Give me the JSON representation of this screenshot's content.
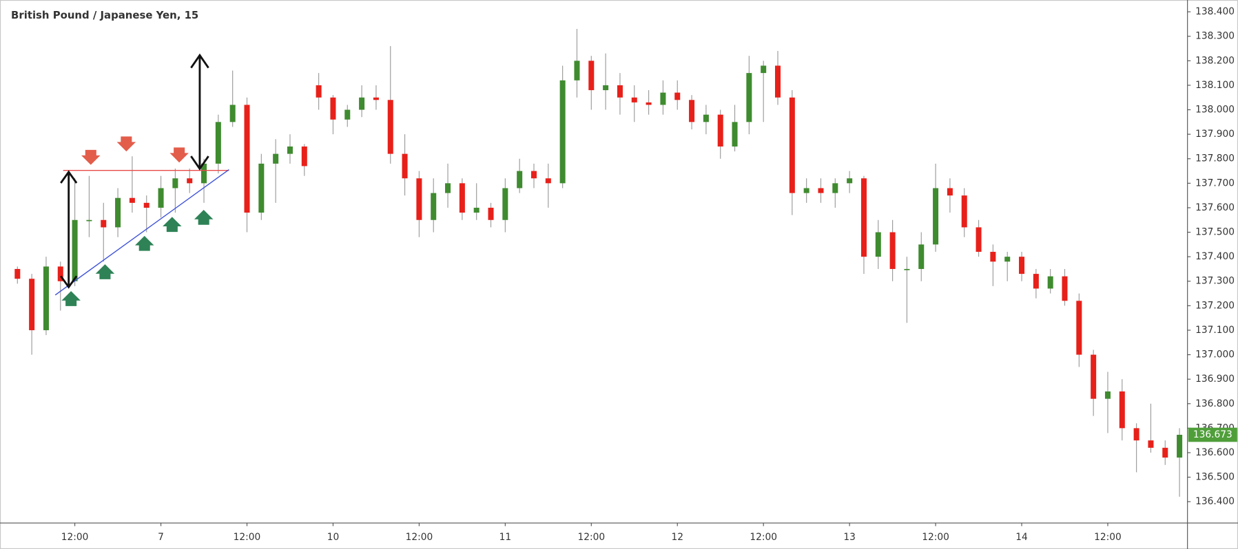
{
  "chart_data": {
    "type": "candlestick",
    "title": "British Pound / Japanese Yen, 15",
    "categories": [
      null,
      null,
      null,
      null,
      "12:00",
      null,
      null,
      null,
      null,
      null,
      "7",
      null,
      null,
      null,
      null,
      null,
      "12:00",
      null,
      null,
      null,
      null,
      null,
      "10",
      null,
      null,
      null,
      null,
      null,
      "12:00",
      null,
      null,
      null,
      null,
      null,
      "11",
      null,
      null,
      null,
      null,
      null,
      "12:00",
      null,
      null,
      null,
      null,
      null,
      "12",
      null,
      null,
      null,
      null,
      null,
      "12:00",
      null,
      null,
      null,
      null,
      null,
      "13",
      null,
      null,
      null,
      null,
      null,
      "12:00",
      null,
      null,
      null,
      null,
      null,
      "14",
      null,
      null,
      null,
      null,
      null,
      "12:00",
      null,
      null,
      null,
      null,
      null
    ],
    "open": [
      137.35,
      137.31,
      137.1,
      137.36,
      137.3,
      137.55,
      137.55,
      137.52,
      137.64,
      137.62,
      137.6,
      137.68,
      137.72,
      137.7,
      137.78,
      137.95,
      138.02,
      137.58,
      137.78,
      137.82,
      137.85,
      138.1,
      138.05,
      137.96,
      138.0,
      138.05,
      138.04,
      137.82,
      137.72,
      137.55,
      137.66,
      137.7,
      137.58,
      137.6,
      137.55,
      137.68,
      137.75,
      137.72,
      137.7,
      138.12,
      138.2,
      138.08,
      138.1,
      138.05,
      138.03,
      138.02,
      138.07,
      138.04,
      137.95,
      137.98,
      137.85,
      137.95,
      138.15,
      138.18,
      138.05,
      137.66,
      137.68,
      137.66,
      137.7,
      137.72,
      137.4,
      137.5,
      137.35,
      137.35,
      137.45,
      137.68,
      137.65,
      137.52,
      137.42,
      137.38,
      137.4,
      137.33,
      137.27,
      137.32,
      137.22,
      137.0,
      136.82,
      136.85,
      136.7,
      136.65,
      136.62,
      136.58
    ],
    "high": [
      137.36,
      137.33,
      137.4,
      137.38,
      137.72,
      137.73,
      137.62,
      137.68,
      137.81,
      137.65,
      137.73,
      137.76,
      137.76,
      137.8,
      137.98,
      138.16,
      138.05,
      137.82,
      137.88,
      137.9,
      137.86,
      138.15,
      138.06,
      138.02,
      138.1,
      138.1,
      138.26,
      137.9,
      137.75,
      137.72,
      137.78,
      137.72,
      137.7,
      137.62,
      137.72,
      137.8,
      137.78,
      137.78,
      138.18,
      138.33,
      138.22,
      138.23,
      138.15,
      138.1,
      138.08,
      138.12,
      138.12,
      138.06,
      138.02,
      138.0,
      138.02,
      138.22,
      138.2,
      138.24,
      138.08,
      137.72,
      137.72,
      137.72,
      137.75,
      137.73,
      137.55,
      137.55,
      137.4,
      137.5,
      137.78,
      137.72,
      137.68,
      137.55,
      137.45,
      137.42,
      137.42,
      137.35,
      137.35,
      137.35,
      137.25,
      137.02,
      136.93,
      136.9,
      136.72,
      136.8,
      136.65,
      136.7
    ],
    "low": [
      137.29,
      137.0,
      137.08,
      137.18,
      137.28,
      137.48,
      137.38,
      137.48,
      137.58,
      137.5,
      137.56,
      137.58,
      137.66,
      137.62,
      137.74,
      137.93,
      137.5,
      137.55,
      137.62,
      137.78,
      137.73,
      138.0,
      137.9,
      137.93,
      137.97,
      138.0,
      137.78,
      137.65,
      137.48,
      137.5,
      137.6,
      137.55,
      137.55,
      137.52,
      137.5,
      137.66,
      137.68,
      137.6,
      137.68,
      138.05,
      138.0,
      138.0,
      137.98,
      137.95,
      137.98,
      137.98,
      138.0,
      137.92,
      137.9,
      137.8,
      137.83,
      137.9,
      137.95,
      138.02,
      137.57,
      137.62,
      137.62,
      137.6,
      137.66,
      137.33,
      137.35,
      137.3,
      137.13,
      137.3,
      137.42,
      137.58,
      137.48,
      137.4,
      137.28,
      137.3,
      137.3,
      137.23,
      137.25,
      137.2,
      136.95,
      136.75,
      136.68,
      136.65,
      136.52,
      136.6,
      136.55,
      136.42
    ],
    "close": [
      137.31,
      137.1,
      137.36,
      137.3,
      137.55,
      137.55,
      137.52,
      137.64,
      137.62,
      137.6,
      137.68,
      137.72,
      137.7,
      137.78,
      137.95,
      138.02,
      137.58,
      137.78,
      137.82,
      137.85,
      137.77,
      138.05,
      137.96,
      138.0,
      138.05,
      138.04,
      137.82,
      137.72,
      137.55,
      137.66,
      137.7,
      137.58,
      137.6,
      137.55,
      137.68,
      137.75,
      137.72,
      137.7,
      138.12,
      138.2,
      138.08,
      138.1,
      138.05,
      138.03,
      138.02,
      138.07,
      138.04,
      137.95,
      137.98,
      137.85,
      137.95,
      138.15,
      138.18,
      138.05,
      137.66,
      137.68,
      137.66,
      137.7,
      137.72,
      137.4,
      137.5,
      137.35,
      137.35,
      137.45,
      137.68,
      137.65,
      137.52,
      137.42,
      137.38,
      137.4,
      137.33,
      137.27,
      137.32,
      137.22,
      137.0,
      136.82,
      136.85,
      136.7,
      136.65,
      136.62,
      136.58,
      136.673
    ],
    "up_color": "#3f8b2f",
    "down_color": "#e8201a",
    "wick_color": "#9a9a9a",
    "ylim": [
      136.313,
      138.432
    ],
    "yticks": [
      {
        "value": 136.4,
        "label": "136.400"
      },
      {
        "value": 136.5,
        "label": "136.500"
      },
      {
        "value": 136.6,
        "label": "136.600"
      },
      {
        "value": 136.7,
        "label": "136.700"
      },
      {
        "value": 136.8,
        "label": "136.800"
      },
      {
        "value": 136.9,
        "label": "136.900"
      },
      {
        "value": 137.0,
        "label": "137.000"
      },
      {
        "value": 137.1,
        "label": "137.100"
      },
      {
        "value": 137.2,
        "label": "137.200"
      },
      {
        "value": 137.3,
        "label": "137.300"
      },
      {
        "value": 137.4,
        "label": "137.400"
      },
      {
        "value": 137.5,
        "label": "137.500"
      },
      {
        "value": 137.6,
        "label": "137.600"
      },
      {
        "value": 137.7,
        "label": "137.700"
      },
      {
        "value": 137.8,
        "label": "137.800"
      },
      {
        "value": 137.9,
        "label": "137.900"
      },
      {
        "value": 138.0,
        "label": "138.000"
      },
      {
        "value": 138.1,
        "label": "138.100"
      },
      {
        "value": 138.2,
        "label": "138.200"
      },
      {
        "value": 138.3,
        "label": "138.300"
      },
      {
        "value": 138.4,
        "label": "138.400"
      }
    ],
    "last_price": 136.673,
    "last_price_color": "#4f9e3a",
    "grid": false
  }
}
